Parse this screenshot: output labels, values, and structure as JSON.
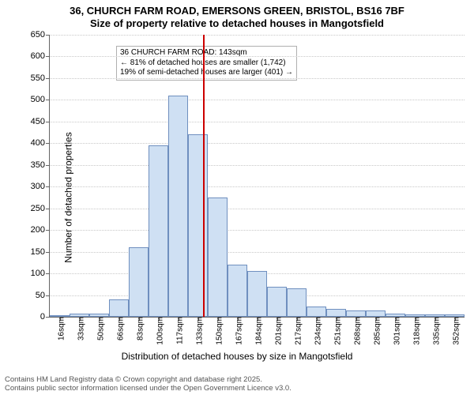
{
  "title": {
    "line1": "36, CHURCH FARM ROAD, EMERSONS GREEN, BRISTOL, BS16 7BF",
    "line2": "Size of property relative to detached houses in Mangotsfield",
    "fontsize": 13,
    "weight": "bold",
    "color": "#000000"
  },
  "chart": {
    "type": "histogram",
    "background_color": "#ffffff",
    "grid_color": "#c8c8c8",
    "axis_color": "#646464",
    "bar_fill": "#cfe0f3",
    "bar_border": "#6f8fbf",
    "bar_width_ratio": 1.0,
    "ylabel": "Number of detached properties",
    "xlabel": "Distribution of detached houses by size in Mangotsfield",
    "label_fontsize": 12,
    "tick_fontsize": 11,
    "xtick_fontsize": 10,
    "ylim": [
      0,
      650
    ],
    "ytick_step": 50,
    "yticks": [
      0,
      50,
      100,
      150,
      200,
      250,
      300,
      350,
      400,
      450,
      500,
      550,
      600,
      650
    ],
    "x_categories": [
      "16sqm",
      "33sqm",
      "50sqm",
      "66sqm",
      "83sqm",
      "100sqm",
      "117sqm",
      "133sqm",
      "150sqm",
      "167sqm",
      "184sqm",
      "201sqm",
      "217sqm",
      "234sqm",
      "251sqm",
      "268sqm",
      "285sqm",
      "301sqm",
      "318sqm",
      "335sqm",
      "352sqm"
    ],
    "values": [
      4,
      8,
      8,
      40,
      160,
      395,
      510,
      420,
      275,
      120,
      105,
      70,
      65,
      23,
      18,
      15,
      15,
      8,
      5,
      5,
      5
    ],
    "reference_line": {
      "x_index_after": 7,
      "fraction_into_next": 0.76,
      "color": "#cc0000",
      "width": 2
    },
    "annotation": {
      "line1": "36 CHURCH FARM ROAD: 143sqm",
      "line2": "← 81% of detached houses are smaller (1,742)",
      "line3": "19% of semi-detached houses are larger (401) →",
      "fontsize": 10,
      "border_color": "#b0b0b0",
      "background": "rgba(255,255,255,0.9)"
    }
  },
  "footer": {
    "line1": "Contains HM Land Registry data © Crown copyright and database right 2025.",
    "line2": "Contains public sector information licensed under the Open Government Licence v3.0.",
    "fontsize": 9.5,
    "color": "#555555"
  }
}
